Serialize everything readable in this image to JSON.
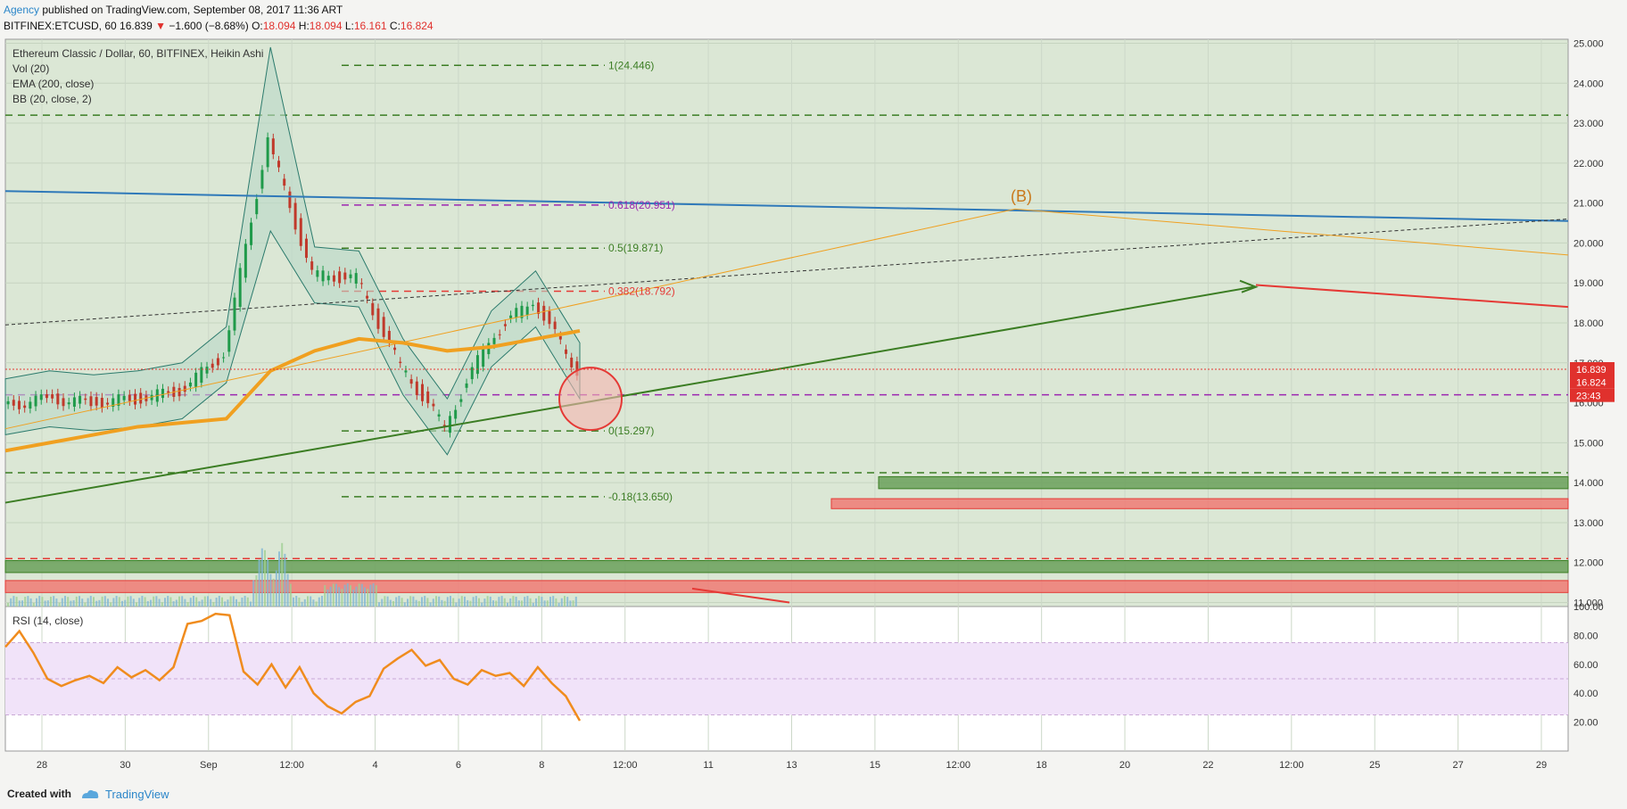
{
  "header": {
    "agency": "Agency",
    "published": "published on TradingView.com, September 08, 2017 11:36 ART",
    "symbol": "BITFINEX:ETCUSD, 60",
    "last": "16.839",
    "arrow": "▼",
    "change": "−1.600 (−8.68%)",
    "o_label": "O:",
    "o_value": "18.094",
    "h_label": "H:",
    "h_value": "18.094",
    "l_label": "L:",
    "l_value": "16.161",
    "c_label": "C:",
    "c_value": "16.824"
  },
  "legend": {
    "title": "Ethereum Classic / Dollar, 60, BITFINEX, Heikin Ashi",
    "vol": "Vol (20)",
    "ema": "EMA (200, close)",
    "bb": "BB (20, close, 2)",
    "rsi": "RSI (14, close)"
  },
  "footer": {
    "created": "Created with",
    "brand": "TradingView"
  },
  "colors": {
    "price_bg": "#dbe7d5",
    "rsi_band": "#f1e3f9",
    "fib_green": "#3b7d23",
    "fib_red": "#e53935",
    "fib_purple": "#9c27b0",
    "trend_blue": "#2f79b9",
    "ema": "#f0a020",
    "rsi_line": "#f08c1e",
    "label_red": "#e0312d"
  },
  "chart_data": [
    {
      "type": "candlestick",
      "title": "Ethereum Classic / Dollar, 60, BITFINEX, Heikin Ashi",
      "ylim": [
        10.9,
        25.1
      ],
      "y_ticks": [
        "25.000",
        "24.000",
        "23.000",
        "22.000",
        "21.000",
        "20.000",
        "19.000",
        "18.000",
        "17.000",
        "16.000",
        "15.000",
        "14.000",
        "13.000",
        "12.000",
        "11.000"
      ],
      "x_ticks": [
        "28",
        "30",
        "Sep",
        "12:00",
        "4",
        "6",
        "8",
        "12:00",
        "11",
        "13",
        "15",
        "12:00",
        "18",
        "20",
        "22",
        "12:00",
        "25",
        "27",
        "29"
      ],
      "fib_levels": [
        {
          "label": "1(24.446)",
          "value": 24.446,
          "color": "green"
        },
        {
          "label": "0.618(20.951)",
          "value": 20.951,
          "color": "purple"
        },
        {
          "label": "0.5(19.871)",
          "value": 19.871,
          "color": "green"
        },
        {
          "label": "0.382(18.792)",
          "value": 18.792,
          "color": "red"
        },
        {
          "label": "0(15.297)",
          "value": 15.297,
          "color": "green"
        },
        {
          "label": "-0.18(13.650)",
          "value": 13.65,
          "color": "green"
        }
      ],
      "horizontal_levels": [
        {
          "value": 23.2,
          "color": "green",
          "style": "dashed"
        },
        {
          "value": 16.2,
          "color": "purple",
          "style": "dashed"
        },
        {
          "value": 14.25,
          "color": "green",
          "style": "dashed"
        },
        {
          "value": 12.1,
          "color": "red",
          "style": "dashed"
        }
      ],
      "zones": [
        {
          "color": "green",
          "from": 14.15,
          "to": 13.85
        },
        {
          "color": "red",
          "from": 13.6,
          "to": 13.35
        },
        {
          "color": "green",
          "from": 12.05,
          "to": 11.75
        },
        {
          "color": "red",
          "from": 11.55,
          "to": 11.25
        }
      ],
      "annotation": "(B)",
      "price_labels": [
        "16.839",
        "16.824",
        "23:43"
      ],
      "series": [
        {
          "name": "EMA (200, close)",
          "values": [
            14.8,
            15.0,
            15.2,
            15.4,
            15.5,
            15.6,
            16.8,
            17.3,
            17.6,
            17.5,
            17.3,
            17.4,
            17.6,
            17.8
          ]
        },
        {
          "name": "Heikin Ashi close",
          "values": [
            15.9,
            16.1,
            16.0,
            16.1,
            16.3,
            17.2,
            22.6,
            19.2,
            19.1,
            16.9,
            15.4,
            17.6,
            18.6,
            16.8
          ]
        }
      ]
    },
    {
      "type": "line",
      "title": "RSI (14, close)",
      "ylim": [
        0,
        100
      ],
      "y_ticks": [
        "100.00",
        "80.00",
        "60.00",
        "40.00",
        "20.00"
      ],
      "bands": [
        25,
        75
      ],
      "series": [
        {
          "name": "RSI (14, close)",
          "values": [
            72,
            83,
            68,
            50,
            45,
            49,
            52,
            47,
            58,
            51,
            56,
            49,
            58,
            88,
            90,
            95,
            94,
            55,
            46,
            60,
            44,
            58,
            40,
            31,
            26,
            34,
            38,
            57,
            64,
            70,
            59,
            63,
            50,
            46,
            56,
            52,
            54,
            45,
            58,
            47,
            38,
            21
          ]
        }
      ]
    }
  ]
}
